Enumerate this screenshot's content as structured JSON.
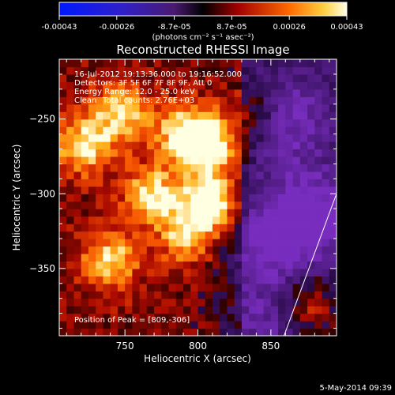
{
  "chart_data": {
    "type": "heatmap",
    "title": "Reconstructed RHESSI Image",
    "xlabel": "Heliocentric X (arcsec)",
    "ylabel": "Heliocentric Y (arcsec)",
    "xlim": [
      705,
      895
    ],
    "ylim": [
      -395,
      -210
    ],
    "x_ticks": [
      750,
      800,
      850
    ],
    "y_ticks": [
      -250,
      -300,
      -350
    ],
    "colorbar": {
      "ticks": [
        "-0.00043",
        "-0.00026",
        "-8.7e-05",
        "8.7e-05",
        "0.00026",
        "0.00043"
      ],
      "min": -0.00043,
      "max": 0.00043,
      "unit_label": "(photons cm⁻² s⁻¹ asec⁻²)"
    },
    "colors": {
      "negative": "#6a2fa0",
      "zero": "#000000",
      "positive_low": "#a00000",
      "positive_mid": "#ff6a00",
      "peak": "#ffffe0"
    },
    "annotations": {
      "time": "16-Jul-2012 19:13:36.000 to 19:16:52.000",
      "detectors": "Detectors: 3F 5F 6F 7F 8F 9F, Att 0",
      "energy": "Energy Range: 12.0 - 25.0 keV",
      "clean_label": "Clean",
      "counts": "Total counts: 2.76E+03",
      "peak": "Position of Peak = [809,-306]"
    },
    "peaks": [
      {
        "x": 809,
        "y": -306,
        "rel_intensity": 1.0
      },
      {
        "x": 806,
        "y": -268,
        "rel_intensity": 0.85
      },
      {
        "x": 790,
        "y": -258,
        "rel_intensity": 0.65
      },
      {
        "x": 768,
        "y": -300,
        "rel_intensity": 0.7
      },
      {
        "x": 748,
        "y": -245,
        "rel_intensity": 0.7
      },
      {
        "x": 722,
        "y": -268,
        "rel_intensity": 0.75
      },
      {
        "x": 740,
        "y": -345,
        "rel_intensity": 0.7
      },
      {
        "x": 792,
        "y": -328,
        "rel_intensity": 0.6
      },
      {
        "x": 875,
        "y": -375,
        "rel_intensity": 0.6
      },
      {
        "x": 838,
        "y": -248,
        "rel_intensity": 0.5
      }
    ],
    "negative_regions": [
      {
        "x": 860,
        "y": -250,
        "rel_intensity": 0.7
      },
      {
        "x": 878,
        "y": -315,
        "rel_intensity": 0.8
      },
      {
        "x": 845,
        "y": -330,
        "rel_intensity": 0.6
      },
      {
        "x": 850,
        "y": -385,
        "rel_intensity": 0.5
      }
    ],
    "limb_line": [
      [
        859,
        -395
      ],
      [
        895,
        -300
      ]
    ]
  },
  "footer": {
    "date": "5-May-2014 09:39"
  }
}
